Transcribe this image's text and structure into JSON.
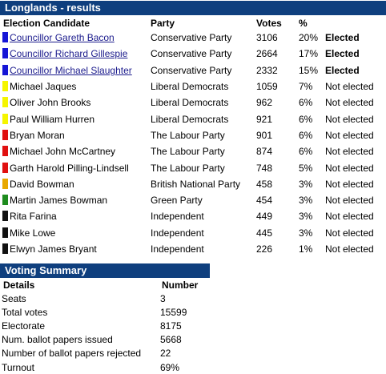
{
  "results": {
    "title": "Longlands - results",
    "headers": {
      "candidate": "Election Candidate",
      "party": "Party",
      "votes": "Votes",
      "percent": "%",
      "status": ""
    },
    "rows": [
      {
        "name": "Councillor Gareth Bacon",
        "party": "Conservative Party",
        "votes": "3106",
        "percent": "20%",
        "status": "Elected",
        "color": "#1515d6",
        "link": true
      },
      {
        "name": "Councillor Richard Gillespie",
        "party": "Conservative Party",
        "votes": "2664",
        "percent": "17%",
        "status": "Elected",
        "color": "#1515d6",
        "link": true
      },
      {
        "name": "Councillor Michael Slaughter",
        "party": "Conservative Party",
        "votes": "2332",
        "percent": "15%",
        "status": "Elected",
        "color": "#1515d6",
        "link": true
      },
      {
        "name": "Michael Jaques",
        "party": "Liberal Democrats",
        "votes": "1059",
        "percent": "7%",
        "status": "Not elected",
        "color": "#f5f500",
        "link": false
      },
      {
        "name": "Oliver John Brooks",
        "party": "Liberal Democrats",
        "votes": "962",
        "percent": "6%",
        "status": "Not elected",
        "color": "#f5f500",
        "link": false
      },
      {
        "name": "Paul William Hurren",
        "party": "Liberal Democrats",
        "votes": "921",
        "percent": "6%",
        "status": "Not elected",
        "color": "#f5f500",
        "link": false
      },
      {
        "name": "Bryan Moran",
        "party": "The Labour Party",
        "votes": "901",
        "percent": "6%",
        "status": "Not elected",
        "color": "#e01010",
        "link": false
      },
      {
        "name": "Michael John McCartney",
        "party": "The Labour Party",
        "votes": "874",
        "percent": "6%",
        "status": "Not elected",
        "color": "#e01010",
        "link": false
      },
      {
        "name": "Garth Harold Pilling-Lindsell",
        "party": "The Labour Party",
        "votes": "748",
        "percent": "5%",
        "status": "Not elected",
        "color": "#e01010",
        "link": false
      },
      {
        "name": "David Bowman",
        "party": "British National Party",
        "votes": "458",
        "percent": "3%",
        "status": "Not elected",
        "color": "#e8a800",
        "link": false
      },
      {
        "name": "Martin James Bowman",
        "party": "Green Party",
        "votes": "454",
        "percent": "3%",
        "status": "Not elected",
        "color": "#1e8c1e",
        "link": false
      },
      {
        "name": "Rita Farina",
        "party": "Independent",
        "votes": "449",
        "percent": "3%",
        "status": "Not elected",
        "color": "#111111",
        "link": false
      },
      {
        "name": "Mike Lowe",
        "party": "Independent",
        "votes": "445",
        "percent": "3%",
        "status": "Not elected",
        "color": "#111111",
        "link": false
      },
      {
        "name": "Elwyn James Bryant",
        "party": "Independent",
        "votes": "226",
        "percent": "1%",
        "status": "Not elected",
        "color": "#111111",
        "link": false
      }
    ]
  },
  "summary": {
    "title": "Voting Summary",
    "headers": {
      "details": "Details",
      "number": "Number"
    },
    "rows": [
      {
        "label": "Seats",
        "value": "3"
      },
      {
        "label": "Total votes",
        "value": "15599"
      },
      {
        "label": "Electorate",
        "value": "8175"
      },
      {
        "label": "Num. ballot papers issued",
        "value": "5668"
      },
      {
        "label": "Number of ballot papers rejected",
        "value": "22"
      },
      {
        "label": "Turnout",
        "value": "69%"
      }
    ]
  }
}
